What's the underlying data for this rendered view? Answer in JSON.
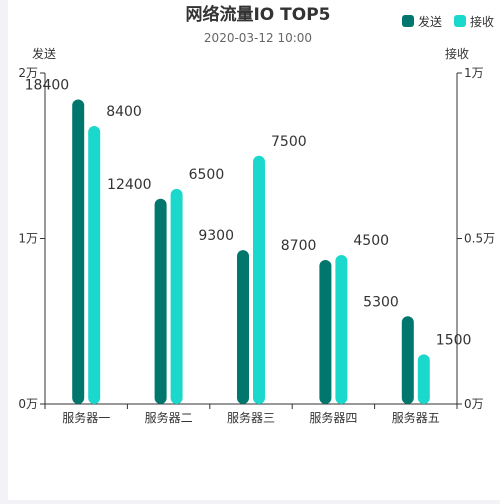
{
  "chart_data": {
    "type": "bar",
    "title": "网络流量IO TOP5",
    "subtitle": "2020-03-12 10:00",
    "categories": [
      "服务器一",
      "服务器二",
      "服务器三",
      "服务器四",
      "服务器五"
    ],
    "series": [
      {
        "name": "发送",
        "axis": "left",
        "color": "#00766c",
        "values": [
          18400,
          12400,
          9300,
          8700,
          5300
        ]
      },
      {
        "name": "接收",
        "axis": "right",
        "color": "#1ad9cc",
        "values": [
          8400,
          6500,
          7500,
          4500,
          1500
        ]
      }
    ],
    "y_left": {
      "label": "发送",
      "range": [
        0,
        20000
      ],
      "ticks": [
        0,
        10000,
        20000
      ],
      "tick_labels": [
        "0万",
        "1万",
        "2万"
      ]
    },
    "y_right": {
      "label": "接收",
      "range": [
        0,
        10000
      ],
      "ticks": [
        0,
        5000,
        10000
      ],
      "tick_labels": [
        "0万",
        "0.5万",
        "1万"
      ]
    },
    "legend_position": "top-right",
    "grid": false
  }
}
